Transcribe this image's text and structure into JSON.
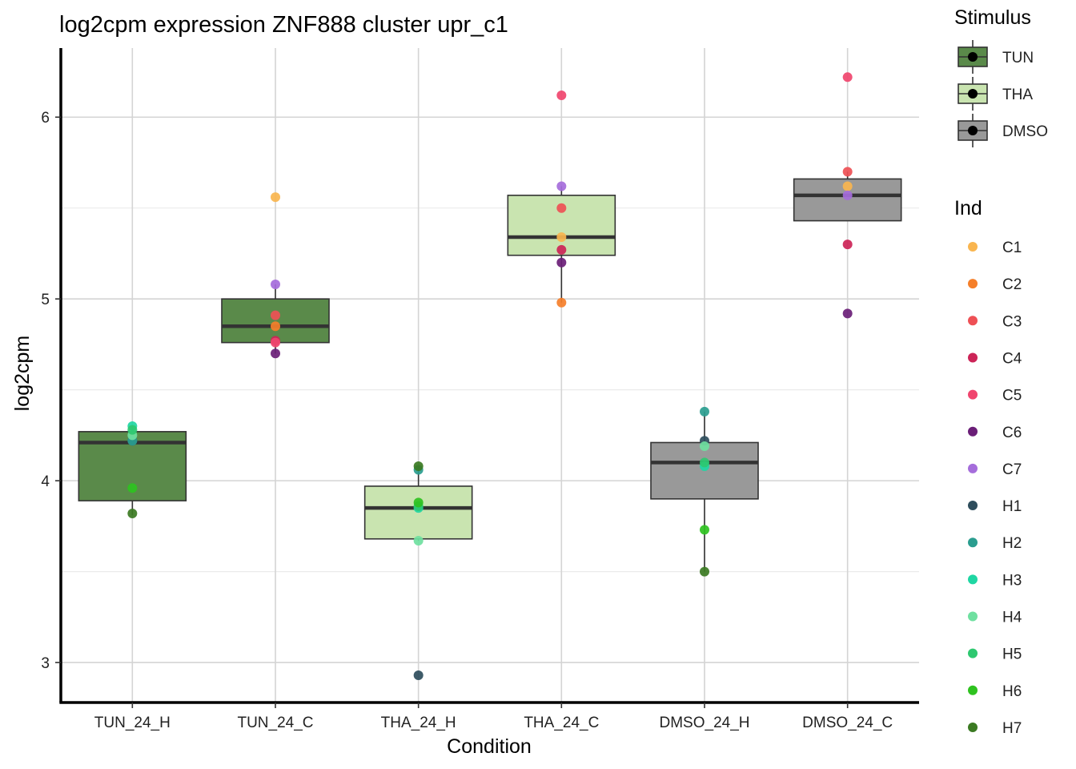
{
  "chart_data": {
    "type": "box",
    "title": "log2cpm expression ZNF888 cluster upr_c1",
    "xlabel": "Condition",
    "ylabel": "log2cpm",
    "ylim": [
      2.78,
      6.38
    ],
    "yticks": [
      3,
      4,
      5,
      6
    ],
    "grid": true,
    "categories": [
      "TUN_24_H",
      "TUN_24_C",
      "THA_24_H",
      "THA_24_C",
      "DMSO_24_H",
      "DMSO_24_C"
    ],
    "boxes": [
      {
        "condition": "TUN_24_H",
        "stimulus": "TUN",
        "q1": 3.89,
        "median": 4.21,
        "q3": 4.27,
        "whisker_low": 3.81,
        "whisker_high": 4.3
      },
      {
        "condition": "TUN_24_C",
        "stimulus": "TUN",
        "q1": 4.76,
        "median": 4.85,
        "q3": 5.0,
        "whisker_low": 4.7,
        "whisker_high": 5.08
      },
      {
        "condition": "THA_24_H",
        "stimulus": "THA",
        "q1": 3.68,
        "median": 3.85,
        "q3": 3.97,
        "whisker_low": 3.67,
        "whisker_high": 4.08
      },
      {
        "condition": "THA_24_C",
        "stimulus": "THA",
        "q1": 5.24,
        "median": 5.34,
        "q3": 5.57,
        "whisker_low": 4.98,
        "whisker_high": 5.62
      },
      {
        "condition": "DMSO_24_H",
        "stimulus": "DMSO",
        "q1": 3.9,
        "median": 4.1,
        "q3": 4.21,
        "whisker_low": 3.5,
        "whisker_high": 4.38
      },
      {
        "condition": "DMSO_24_C",
        "stimulus": "DMSO",
        "q1": 5.43,
        "median": 5.57,
        "q3": 5.66,
        "whisker_low": 5.43,
        "whisker_high": 5.7
      }
    ],
    "points": [
      {
        "condition": "TUN_24_H",
        "ind": "H1",
        "value": 4.22
      },
      {
        "condition": "TUN_24_H",
        "ind": "H2",
        "value": 4.22
      },
      {
        "condition": "TUN_24_H",
        "ind": "H3",
        "value": 4.3
      },
      {
        "condition": "TUN_24_H",
        "ind": "H4",
        "value": 4.25
      },
      {
        "condition": "TUN_24_H",
        "ind": "H5",
        "value": 4.28
      },
      {
        "condition": "TUN_24_H",
        "ind": "H6",
        "value": 3.96
      },
      {
        "condition": "TUN_24_H",
        "ind": "H7",
        "value": 3.82
      },
      {
        "condition": "TUN_24_C",
        "ind": "C1",
        "value": 5.56
      },
      {
        "condition": "TUN_24_C",
        "ind": "C2",
        "value": 4.85
      },
      {
        "condition": "TUN_24_C",
        "ind": "C3",
        "value": 4.91
      },
      {
        "condition": "TUN_24_C",
        "ind": "C4",
        "value": 4.77
      },
      {
        "condition": "TUN_24_C",
        "ind": "C5",
        "value": 4.76
      },
      {
        "condition": "TUN_24_C",
        "ind": "C6",
        "value": 4.7
      },
      {
        "condition": "TUN_24_C",
        "ind": "C7",
        "value": 5.08
      },
      {
        "condition": "THA_24_H",
        "ind": "H1",
        "value": 2.93
      },
      {
        "condition": "THA_24_H",
        "ind": "H2",
        "value": 4.06
      },
      {
        "condition": "THA_24_H",
        "ind": "H3",
        "value": 3.85
      },
      {
        "condition": "THA_24_H",
        "ind": "H4",
        "value": 3.67
      },
      {
        "condition": "THA_24_H",
        "ind": "H5",
        "value": 3.86
      },
      {
        "condition": "THA_24_H",
        "ind": "H6",
        "value": 3.88
      },
      {
        "condition": "THA_24_H",
        "ind": "H7",
        "value": 4.08
      },
      {
        "condition": "THA_24_C",
        "ind": "C1",
        "value": 5.34
      },
      {
        "condition": "THA_24_C",
        "ind": "C2",
        "value": 4.98
      },
      {
        "condition": "THA_24_C",
        "ind": "C3",
        "value": 5.5
      },
      {
        "condition": "THA_24_C",
        "ind": "C4",
        "value": 5.27
      },
      {
        "condition": "THA_24_C",
        "ind": "C5",
        "value": 6.12
      },
      {
        "condition": "THA_24_C",
        "ind": "C6",
        "value": 5.2
      },
      {
        "condition": "THA_24_C",
        "ind": "C7",
        "value": 5.62
      },
      {
        "condition": "DMSO_24_H",
        "ind": "H1",
        "value": 4.22
      },
      {
        "condition": "DMSO_24_H",
        "ind": "H2",
        "value": 4.38
      },
      {
        "condition": "DMSO_24_H",
        "ind": "H3",
        "value": 4.08
      },
      {
        "condition": "DMSO_24_H",
        "ind": "H4",
        "value": 4.19
      },
      {
        "condition": "DMSO_24_H",
        "ind": "H5",
        "value": 4.1
      },
      {
        "condition": "DMSO_24_H",
        "ind": "H6",
        "value": 3.73
      },
      {
        "condition": "DMSO_24_H",
        "ind": "H7",
        "value": 3.5
      },
      {
        "condition": "DMSO_24_C",
        "ind": "C1",
        "value": 5.62
      },
      {
        "condition": "DMSO_24_C",
        "ind": "C3",
        "value": 5.7
      },
      {
        "condition": "DMSO_24_C",
        "ind": "C4",
        "value": 5.3
      },
      {
        "condition": "DMSO_24_C",
        "ind": "C5",
        "value": 6.22
      },
      {
        "condition": "DMSO_24_C",
        "ind": "C6",
        "value": 4.92
      },
      {
        "condition": "DMSO_24_C",
        "ind": "C7",
        "value": 5.57
      }
    ],
    "legend": {
      "stimulus": {
        "title": "Stimulus",
        "entries": [
          {
            "label": "TUN",
            "color": "#5a8a4a"
          },
          {
            "label": "THA",
            "color": "#c9e4b0"
          },
          {
            "label": "DMSO",
            "color": "#999999"
          }
        ]
      },
      "ind": {
        "title": "Ind",
        "entries": [
          {
            "label": "C1",
            "color": "#f9b54f"
          },
          {
            "label": "C2",
            "color": "#f57f2a"
          },
          {
            "label": "C3",
            "color": "#ee5055"
          },
          {
            "label": "C4",
            "color": "#cc2457"
          },
          {
            "label": "C5",
            "color": "#f0456e"
          },
          {
            "label": "C6",
            "color": "#6a1e77"
          },
          {
            "label": "C7",
            "color": "#a56ddb"
          },
          {
            "label": "H1",
            "color": "#2e4d5c"
          },
          {
            "label": "H2",
            "color": "#2a9d8f"
          },
          {
            "label": "H3",
            "color": "#1fd6a3"
          },
          {
            "label": "H4",
            "color": "#6fe0a0"
          },
          {
            "label": "H5",
            "color": "#2ec870"
          },
          {
            "label": "H6",
            "color": "#2ec21f"
          },
          {
            "label": "H7",
            "color": "#3b7a22"
          }
        ]
      }
    }
  }
}
